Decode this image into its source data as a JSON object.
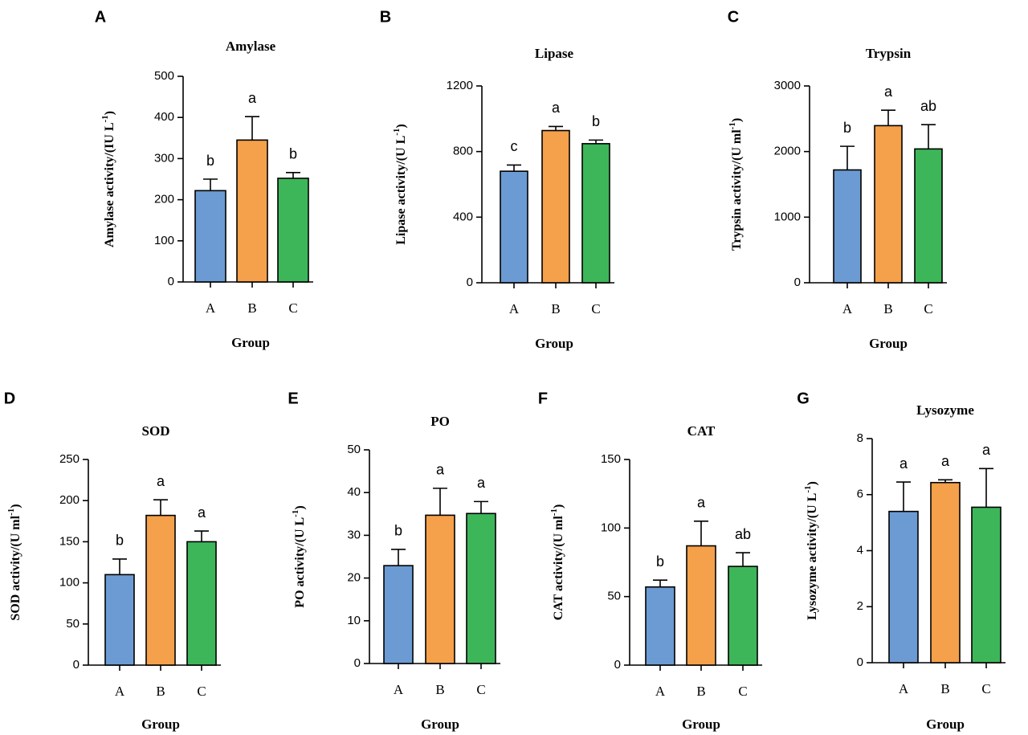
{
  "colors": {
    "A": "#6b9bd2",
    "B": "#f5a04a",
    "C": "#3db65a"
  },
  "chart_data": [
    {
      "type": "bar",
      "panel": "A",
      "title": "Amylase",
      "ylabel_text": "Amylase activity/(IU L",
      "ylabel_sup": "-1",
      "ylabel_close": ")",
      "xlabel": "Group",
      "categories": [
        "A",
        "B",
        "C"
      ],
      "values": [
        222,
        345,
        252
      ],
      "errors": [
        28,
        57,
        14
      ],
      "significance": [
        "b",
        "a",
        "b"
      ],
      "ylim": [
        0,
        500
      ],
      "yticks": [
        0,
        100,
        200,
        300,
        400,
        500
      ],
      "ytick_labels": [
        "0",
        "100",
        "200",
        "300",
        "400",
        "500"
      ]
    },
    {
      "type": "bar",
      "panel": "B",
      "title": "Lipase",
      "ylabel_text": "Lipase activity/(U L",
      "ylabel_sup": "-1",
      "ylabel_close": ")",
      "xlabel": "Group",
      "categories": [
        "A",
        "B",
        "C"
      ],
      "values": [
        680,
        928,
        848
      ],
      "errors": [
        38,
        25,
        22
      ],
      "significance": [
        "c",
        "a",
        "b"
      ],
      "ylim": [
        0,
        1200
      ],
      "yticks": [
        0,
        400,
        800,
        1200
      ],
      "ytick_labels": [
        "0",
        "400",
        "800",
        "1200"
      ]
    },
    {
      "type": "bar",
      "panel": "C",
      "title": "Trypsin",
      "ylabel_text": "Trypsin activity/(U ml",
      "ylabel_sup": "-1",
      "ylabel_close": ")",
      "xlabel": "Group",
      "categories": [
        "A",
        "B",
        "C"
      ],
      "values": [
        1720,
        2395,
        2040
      ],
      "errors": [
        360,
        235,
        370
      ],
      "significance": [
        "b",
        "a",
        "ab"
      ],
      "ylim": [
        0,
        3000
      ],
      "yticks": [
        0,
        1000,
        2000,
        3000
      ],
      "ytick_labels": [
        "0",
        "1000",
        "2000",
        "3000"
      ]
    },
    {
      "type": "bar",
      "panel": "D",
      "title": "SOD",
      "ylabel_text": "SOD activity/(U ml",
      "ylabel_sup": "-1",
      "ylabel_close": ")",
      "xlabel": "Group",
      "categories": [
        "A",
        "B",
        "C"
      ],
      "values": [
        110,
        182,
        150
      ],
      "errors": [
        19,
        19,
        13
      ],
      "significance": [
        "b",
        "a",
        "a"
      ],
      "ylim": [
        0,
        250
      ],
      "yticks": [
        0,
        50,
        100,
        150,
        200,
        250
      ],
      "ytick_labels": [
        "0",
        "50",
        "100",
        "150",
        "200",
        "250"
      ]
    },
    {
      "type": "bar",
      "panel": "E",
      "title": "PO",
      "ylabel_text": "PO activity/(U L",
      "ylabel_sup": "-1",
      "ylabel_close": ")",
      "xlabel": "Group",
      "categories": [
        "A",
        "B",
        "C"
      ],
      "values": [
        22.9,
        34.7,
        35.1
      ],
      "errors": [
        3.8,
        6.3,
        2.8
      ],
      "significance": [
        "b",
        "a",
        "a"
      ],
      "ylim": [
        0,
        50
      ],
      "yticks": [
        0,
        10,
        20,
        30,
        40,
        50
      ],
      "ytick_labels": [
        "0",
        "10",
        "20",
        "30",
        "40",
        "50"
      ]
    },
    {
      "type": "bar",
      "panel": "F",
      "title": "CAT",
      "ylabel_text": "CAT activity/(U ml",
      "ylabel_sup": "-1",
      "ylabel_close": ")",
      "xlabel": "Group",
      "categories": [
        "A",
        "B",
        "C"
      ],
      "values": [
        57,
        87,
        72
      ],
      "errors": [
        5,
        18,
        10
      ],
      "significance": [
        "b",
        "a",
        "ab"
      ],
      "ylim": [
        0,
        150
      ],
      "yticks": [
        0,
        50,
        100,
        150
      ],
      "ytick_labels": [
        "0",
        "50",
        "100",
        "150"
      ]
    },
    {
      "type": "bar",
      "panel": "G",
      "title": "Lysozyme",
      "ylabel_text": "Lysozyme activity/(U L",
      "ylabel_sup": "-1",
      "ylabel_close": ")",
      "xlabel": "Group",
      "categories": [
        "A",
        "B",
        "C"
      ],
      "values": [
        5.4,
        6.43,
        5.55
      ],
      "errors": [
        1.05,
        0.1,
        1.38
      ],
      "significance": [
        "a",
        "a",
        "a"
      ],
      "ylim": [
        0,
        8
      ],
      "yticks": [
        0,
        2,
        4,
        6,
        8
      ],
      "ytick_labels": [
        "0",
        "2",
        "4",
        "6",
        "8"
      ]
    }
  ]
}
